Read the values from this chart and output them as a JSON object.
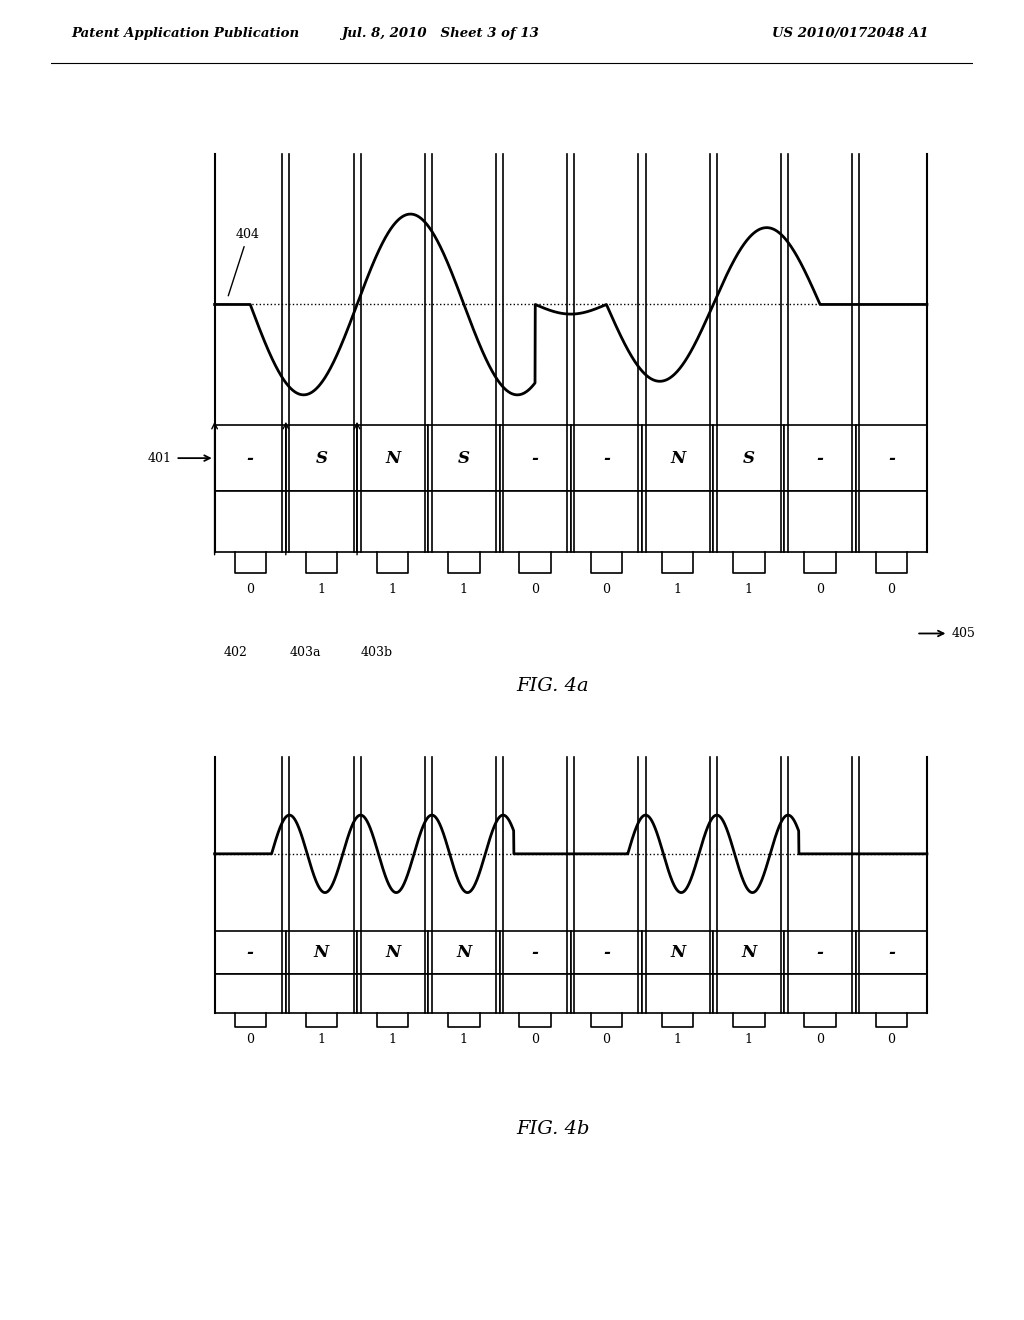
{
  "header_left": "Patent Application Publication",
  "header_mid": "Jul. 8, 2010   Sheet 3 of 13",
  "header_right": "US 2010/0172048 A1",
  "fig4a": {
    "title": "FIG. 4a",
    "cells": [
      "-",
      "S",
      "N",
      "S",
      "-",
      "-",
      "N",
      "S",
      "-",
      "-"
    ],
    "bits": [
      "0",
      "1",
      "1",
      "1",
      "0",
      "0",
      "1",
      "1",
      "0",
      "0"
    ],
    "label_401": "401",
    "label_402": "402",
    "label_403a": "403a",
    "label_403b": "403b",
    "label_404": "404",
    "label_405": "405"
  },
  "fig4b": {
    "title": "FIG. 4b",
    "cells": [
      "-",
      "N",
      "N",
      "N",
      "-",
      "-",
      "N",
      "N",
      "-",
      "-"
    ],
    "bits": [
      "0",
      "1",
      "1",
      "1",
      "0",
      "0",
      "1",
      "1",
      "0",
      "0"
    ]
  },
  "bg_color": "#ffffff"
}
